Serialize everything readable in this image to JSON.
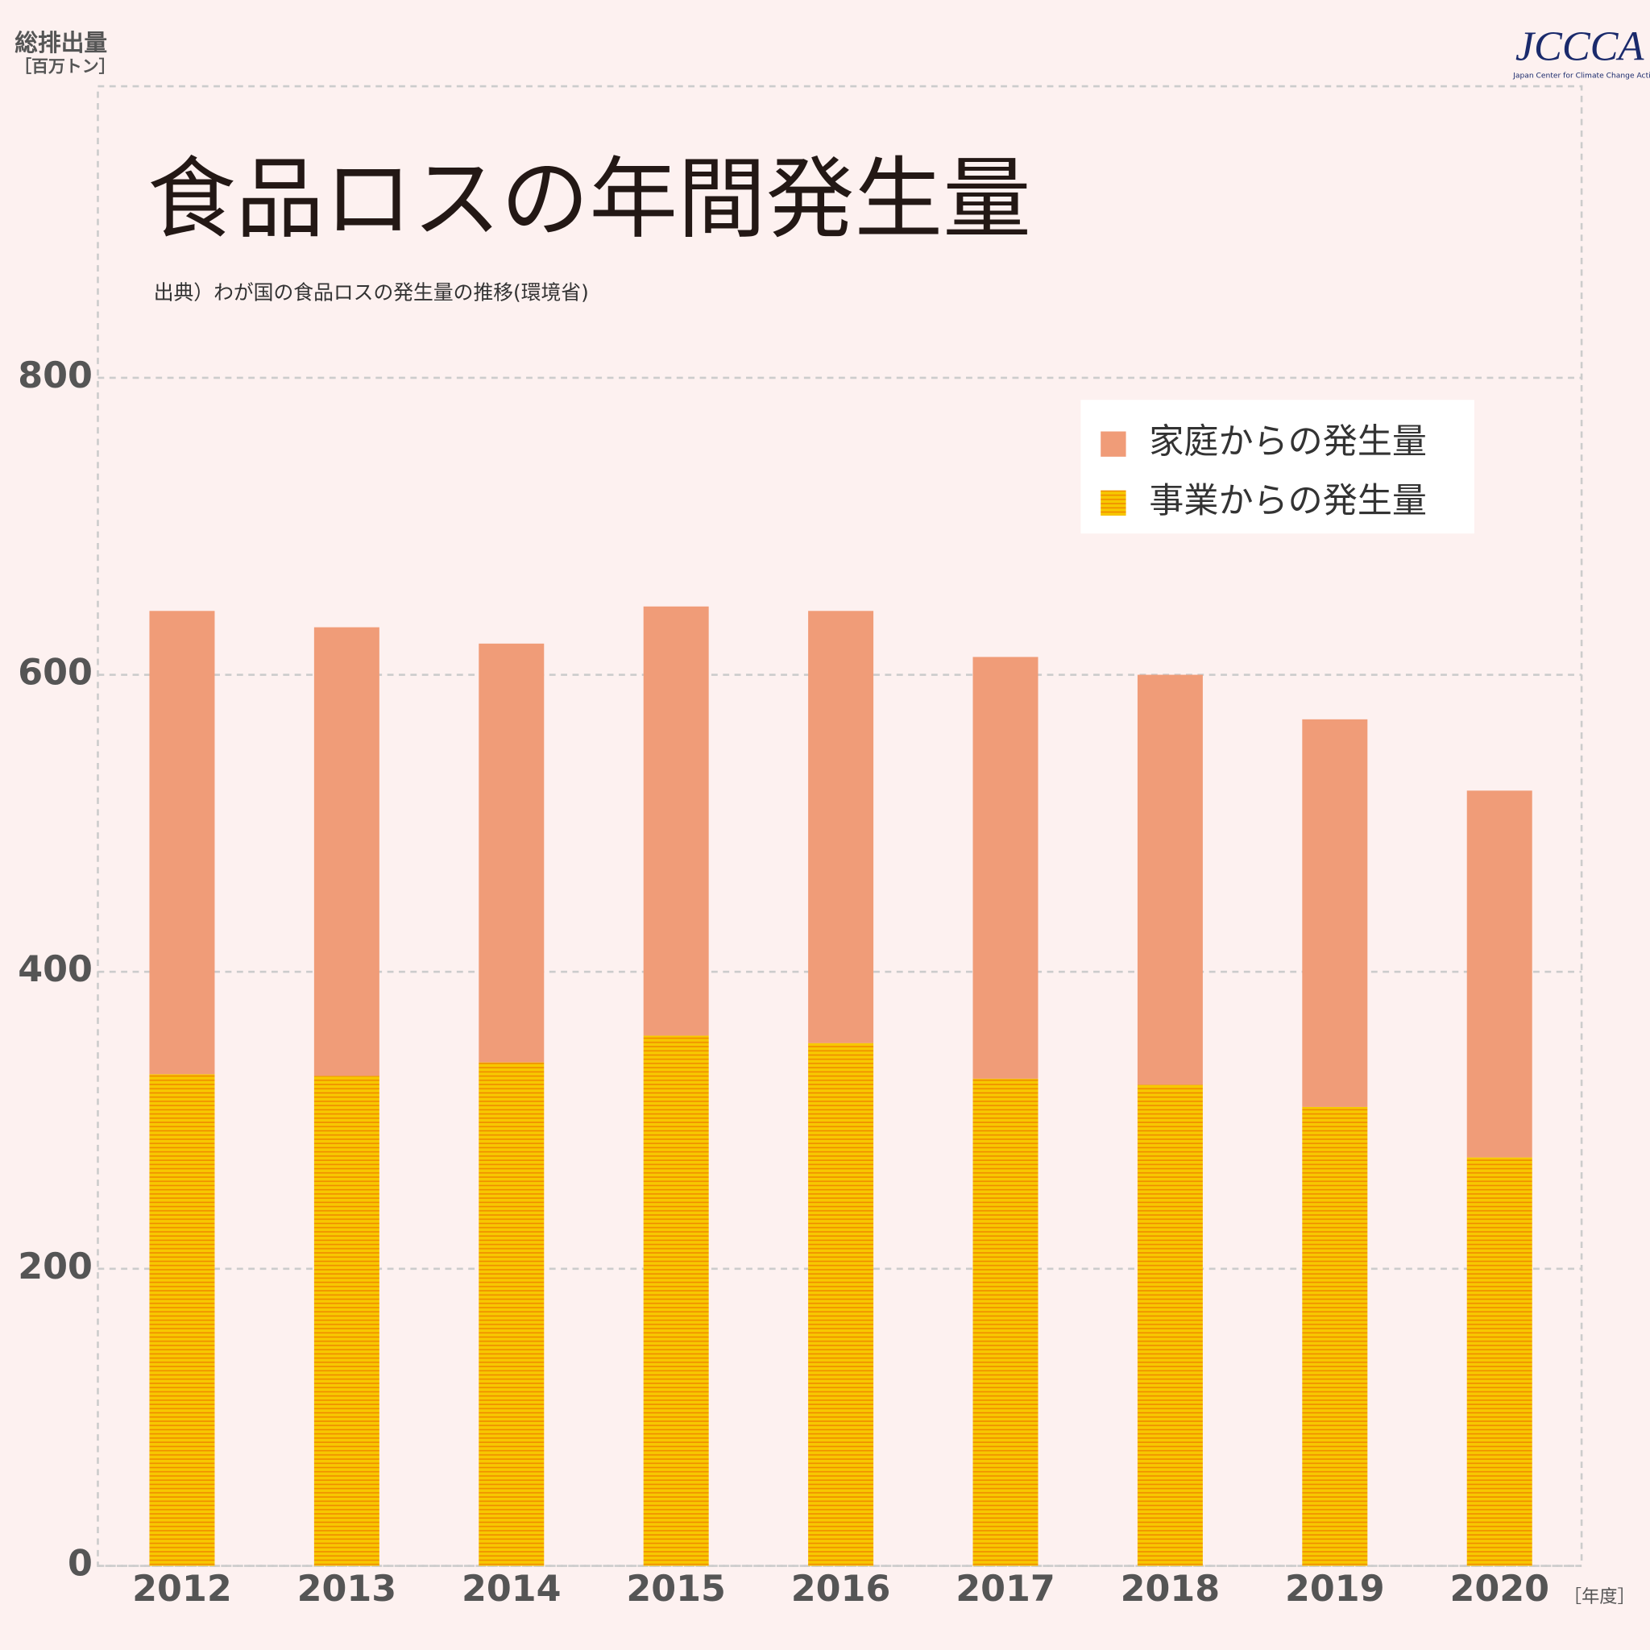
{
  "chart_data": {
    "type": "stacked_bar",
    "title": "食品ロスの年間発生量",
    "subtitle": "出典）わが国の食品ロスの発生量の推移(環境省)",
    "y_label": [
      "総排出量",
      "［百万トン］"
    ],
    "x_label": "［年度］",
    "categories": [
      "2012",
      "2013",
      "2014",
      "2015",
      "2016",
      "2017",
      "2018",
      "2019",
      "2020"
    ],
    "series": [
      {
        "name": "事業からの発生量",
        "color": "#f5c400",
        "values": [
          331,
          330,
          339,
          357,
          352,
          328,
          324,
          309,
          275
        ]
      },
      {
        "name": "家庭からの発生量",
        "color": "#f09c78",
        "values": [
          312,
          302,
          282,
          289,
          291,
          284,
          276,
          261,
          247
        ]
      }
    ],
    "ylim": [
      0,
      800
    ],
    "yticks": [
      0,
      200,
      400,
      600,
      800
    ],
    "grid": true,
    "legend": "top-right"
  },
  "logo": {
    "text": "JCCCA",
    "caption": "Japan Center for Climate Change Actions"
  }
}
